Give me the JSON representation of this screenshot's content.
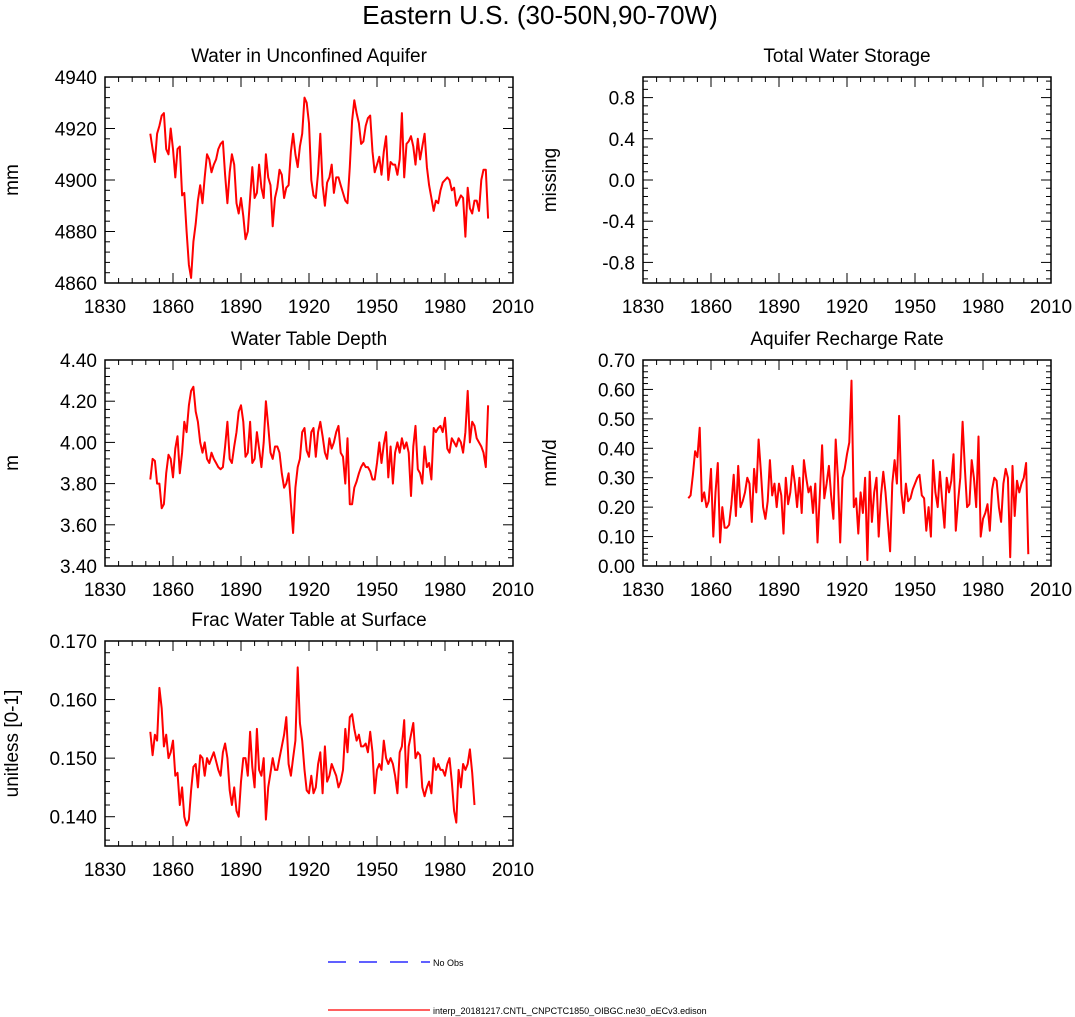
{
  "figure": {
    "title": "Eastern U.S. (30-50N,90-70W)",
    "line_color": "#ff0000",
    "obs_color": "#0000ff"
  },
  "legend": {
    "items": [
      {
        "label": "No Obs",
        "style": "dashed",
        "color": "#0000ff"
      },
      {
        "label": "interp_20181217.CNTL_CNPCTC1850_OIBGC.ne30_oECv3.edison",
        "style": "solid",
        "color": "#ff0000"
      }
    ]
  },
  "chart_data": [
    {
      "type": "line",
      "title": "Water in Unconfined Aquifer",
      "xlabel": "",
      "ylabel": "mm",
      "xlim": [
        1830,
        2010
      ],
      "ylim": [
        4860,
        4940
      ],
      "xticks": [
        1830,
        1860,
        1890,
        1920,
        1950,
        1980,
        2010
      ],
      "yticks": [
        4860,
        4880,
        4900,
        4920,
        4940
      ],
      "ytick_labels": [
        "4860",
        "4880",
        "4900",
        "4920",
        "4940"
      ],
      "series": [
        {
          "name": "interp_20181217.CNTL_CNPCTC1850_OIBGC.ne30_oECv3.edison",
          "x_start": 1850,
          "values": [
            4918,
            4912,
            4907,
            4918,
            4921,
            4925,
            4926,
            4912,
            4910,
            4920,
            4912,
            4901,
            4912,
            4913,
            4894,
            4895,
            4880,
            4867,
            4862,
            4876,
            4883,
            4892,
            4898,
            4891,
            4901,
            4910,
            4908,
            4903,
            4906,
            4908,
            4912,
            4914,
            4915,
            4902,
            4891,
            4903,
            4910,
            4906,
            4891,
            4887,
            4893,
            4886,
            4877,
            4880,
            4893,
            4905,
            4893,
            4895,
            4906,
            4897,
            4893,
            4910,
            4901,
            4898,
            4882,
            4893,
            4897,
            4904,
            4902,
            4893,
            4897,
            4898,
            4911,
            4918,
            4910,
            4905,
            4913,
            4918,
            4932,
            4930,
            4922,
            4900,
            4894,
            4893,
            4903,
            4918,
            4898,
            4890,
            4899,
            4901,
            4906,
            4895,
            4901,
            4901,
            4898,
            4895,
            4892,
            4891,
            4905,
            4923,
            4931,
            4926,
            4922,
            4914,
            4915,
            4921,
            4924,
            4925,
            4911,
            4903,
            4906,
            4909,
            4902,
            4911,
            4917,
            4900,
            4907,
            4906,
            4906,
            4902,
            4908,
            4926,
            4901,
            4914,
            4915,
            4917,
            4913,
            4906,
            4916,
            4908,
            4913,
            4918,
            4905,
            4898,
            4893,
            4888,
            4892,
            4891,
            4896,
            4899,
            4900,
            4901,
            4900,
            4896,
            4897,
            4890,
            4892,
            4894,
            4893,
            4878,
            4897,
            4889,
            4887,
            4892,
            4892,
            4888,
            4900,
            4904,
            4904,
            4885
          ]
        }
      ]
    },
    {
      "type": "line",
      "title": "Total Water Storage",
      "xlabel": "",
      "ylabel": "missing",
      "xlim": [
        1830,
        2010
      ],
      "ylim": [
        -1,
        1
      ],
      "xticks": [
        1830,
        1860,
        1890,
        1920,
        1950,
        1980,
        2010
      ],
      "yticks": [
        -0.8,
        -0.4,
        0.0,
        0.4,
        0.8
      ],
      "ytick_labels": [
        "-0.8",
        "-0.4",
        "0.0",
        "0.4",
        "0.8"
      ],
      "series": []
    },
    {
      "type": "line",
      "title": "Water Table Depth",
      "xlabel": "",
      "ylabel": "m",
      "xlim": [
        1830,
        2010
      ],
      "ylim": [
        3.4,
        4.4
      ],
      "xticks": [
        1830,
        1860,
        1890,
        1920,
        1950,
        1980,
        2010
      ],
      "yticks": [
        3.4,
        3.6,
        3.8,
        4.0,
        4.2,
        4.4
      ],
      "ytick_labels": [
        "3.40",
        "3.60",
        "3.80",
        "4.00",
        "4.20",
        "4.40"
      ],
      "series": [
        {
          "name": "interp_20181217.CNTL_CNPCTC1850_OIBGC.ne30_oECv3.edison",
          "x_start": 1850,
          "values": [
            3.82,
            3.92,
            3.91,
            3.8,
            3.8,
            3.68,
            3.7,
            3.85,
            3.94,
            3.92,
            3.83,
            3.97,
            4.03,
            3.85,
            3.95,
            4.1,
            4.05,
            4.18,
            4.25,
            4.27,
            4.15,
            4.1,
            4.0,
            3.95,
            4.0,
            3.92,
            3.9,
            3.95,
            3.92,
            3.9,
            3.88,
            3.87,
            3.88,
            3.98,
            4.1,
            3.92,
            3.9,
            3.98,
            4.05,
            4.15,
            4.18,
            4.1,
            3.93,
            3.95,
            4.1,
            3.9,
            3.92,
            4.05,
            3.97,
            3.88,
            4.0,
            4.2,
            4.08,
            3.95,
            3.92,
            3.98,
            3.98,
            3.95,
            3.85,
            3.78,
            3.8,
            3.85,
            3.7,
            3.56,
            3.78,
            3.88,
            3.92,
            4.05,
            4.07,
            3.96,
            3.93,
            4.05,
            4.07,
            3.93,
            4.05,
            4.1,
            4.03,
            3.95,
            3.92,
            4.02,
            3.97,
            4.0,
            4.05,
            4.08,
            3.95,
            3.93,
            3.8,
            4.02,
            3.7,
            3.7,
            3.78,
            3.81,
            3.85,
            3.88,
            3.9,
            3.88,
            3.88,
            3.86,
            3.82,
            3.82,
            3.9,
            4.0,
            3.9,
            3.99,
            4.05,
            3.83,
            3.98,
            3.8,
            3.95,
            4.0,
            3.95,
            4.02,
            3.97,
            4.0,
            3.95,
            3.74,
            3.98,
            4.08,
            3.87,
            3.85,
            3.8,
            3.98,
            3.88,
            3.9,
            3.82,
            4.07,
            4.05,
            4.07,
            4.08,
            4.05,
            4.12,
            3.97,
            3.95,
            4.02,
            4.0,
            3.98,
            4.02,
            4.0,
            3.95,
            4.05,
            4.25,
            4.0,
            4.1,
            4.08,
            4.02,
            4.0,
            3.98,
            3.95,
            3.88,
            4.18
          ]
        }
      ]
    },
    {
      "type": "line",
      "title": "Aquifer Recharge Rate",
      "xlabel": "",
      "ylabel": "mm/d",
      "xlim": [
        1830,
        2010
      ],
      "ylim": [
        0.0,
        0.7
      ],
      "xticks": [
        1830,
        1860,
        1890,
        1920,
        1950,
        1980,
        2010
      ],
      "yticks": [
        0.0,
        0.1,
        0.2,
        0.3,
        0.4,
        0.5,
        0.6,
        0.7
      ],
      "ytick_labels": [
        "0.00",
        "0.10",
        "0.20",
        "0.30",
        "0.40",
        "0.50",
        "0.60",
        "0.70"
      ],
      "series": [
        {
          "name": "interp_20181217.CNTL_CNPCTC1850_OIBGC.ne30_oECv3.edison",
          "x_start": 1850,
          "values": [
            0.23,
            0.24,
            0.31,
            0.39,
            0.37,
            0.47,
            0.22,
            0.25,
            0.2,
            0.22,
            0.33,
            0.1,
            0.25,
            0.35,
            0.08,
            0.2,
            0.13,
            0.13,
            0.14,
            0.21,
            0.31,
            0.17,
            0.34,
            0.2,
            0.22,
            0.25,
            0.3,
            0.28,
            0.15,
            0.33,
            0.25,
            0.43,
            0.32,
            0.2,
            0.16,
            0.22,
            0.36,
            0.24,
            0.28,
            0.2,
            0.28,
            0.24,
            0.11,
            0.3,
            0.21,
            0.25,
            0.34,
            0.28,
            0.2,
            0.3,
            0.18,
            0.36,
            0.3,
            0.25,
            0.27,
            0.18,
            0.28,
            0.08,
            0.24,
            0.41,
            0.23,
            0.28,
            0.34,
            0.24,
            0.16,
            0.43,
            0.3,
            0.08,
            0.3,
            0.33,
            0.38,
            0.42,
            0.63,
            0.2,
            0.23,
            0.11,
            0.25,
            0.18,
            0.3,
            0.02,
            0.32,
            0.15,
            0.25,
            0.3,
            0.1,
            0.24,
            0.32,
            0.25,
            0.15,
            0.05,
            0.28,
            0.36,
            0.28,
            0.51,
            0.25,
            0.18,
            0.28,
            0.22,
            0.23,
            0.26,
            0.28,
            0.3,
            0.31,
            0.24,
            0.23,
            0.12,
            0.2,
            0.1,
            0.36,
            0.25,
            0.2,
            0.32,
            0.22,
            0.13,
            0.3,
            0.25,
            0.29,
            0.38,
            0.12,
            0.22,
            0.3,
            0.49,
            0.33,
            0.2,
            0.21,
            0.36,
            0.3,
            0.2,
            0.44,
            0.1,
            0.16,
            0.18,
            0.21,
            0.12,
            0.26,
            0.3,
            0.29,
            0.2,
            0.15,
            0.28,
            0.33,
            0.3,
            0.03,
            0.34,
            0.17,
            0.29,
            0.25,
            0.28,
            0.3,
            0.35,
            0.04
          ]
        }
      ]
    },
    {
      "type": "line",
      "title": "Frac Water Table at Surface",
      "xlabel": "",
      "ylabel": "unitless [0-1]",
      "xlim": [
        1830,
        2010
      ],
      "ylim": [
        0.135,
        0.17
      ],
      "xticks": [
        1830,
        1860,
        1890,
        1920,
        1950,
        1980,
        2010
      ],
      "yticks": [
        0.14,
        0.15,
        0.16,
        0.17
      ],
      "ytick_labels": [
        "0.140",
        "0.150",
        "0.160",
        "0.170"
      ],
      "series": [
        {
          "name": "interp_20181217.CNTL_CNPCTC1850_OIBGC.ne30_oECv3.edison",
          "x_start": 1850,
          "values": [
            0.1545,
            0.1505,
            0.154,
            0.153,
            0.162,
            0.1585,
            0.152,
            0.154,
            0.15,
            0.151,
            0.153,
            0.147,
            0.1475,
            0.142,
            0.145,
            0.14,
            0.1385,
            0.1395,
            0.1445,
            0.1485,
            0.149,
            0.145,
            0.1505,
            0.15,
            0.147,
            0.15,
            0.149,
            0.15,
            0.151,
            0.1495,
            0.148,
            0.147,
            0.151,
            0.1525,
            0.15,
            0.1445,
            0.142,
            0.145,
            0.141,
            0.14,
            0.146,
            0.15,
            0.15,
            0.147,
            0.1545,
            0.1485,
            0.145,
            0.155,
            0.148,
            0.147,
            0.15,
            0.1395,
            0.145,
            0.1475,
            0.15,
            0.148,
            0.148,
            0.15,
            0.152,
            0.154,
            0.157,
            0.149,
            0.147,
            0.15,
            0.153,
            0.1655,
            0.156,
            0.153,
            0.148,
            0.1445,
            0.144,
            0.147,
            0.144,
            0.145,
            0.149,
            0.151,
            0.144,
            0.152,
            0.146,
            0.147,
            0.149,
            0.148,
            0.147,
            0.145,
            0.146,
            0.148,
            0.155,
            0.151,
            0.157,
            0.1575,
            0.155,
            0.153,
            0.154,
            0.152,
            0.152,
            0.1525,
            0.151,
            0.1545,
            0.151,
            0.144,
            0.148,
            0.149,
            0.148,
            0.153,
            0.15,
            0.149,
            0.15,
            0.149,
            0.147,
            0.144,
            0.151,
            0.152,
            0.1565,
            0.145,
            0.152,
            0.154,
            0.156,
            0.15,
            0.151,
            0.1505,
            0.145,
            0.1435,
            0.145,
            0.146,
            0.144,
            0.15,
            0.148,
            0.149,
            0.148,
            0.148,
            0.147,
            0.149,
            0.15,
            0.146,
            0.141,
            0.139,
            0.148,
            0.145,
            0.149,
            0.148,
            0.149,
            0.1515,
            0.1475,
            0.142
          ]
        }
      ]
    }
  ]
}
